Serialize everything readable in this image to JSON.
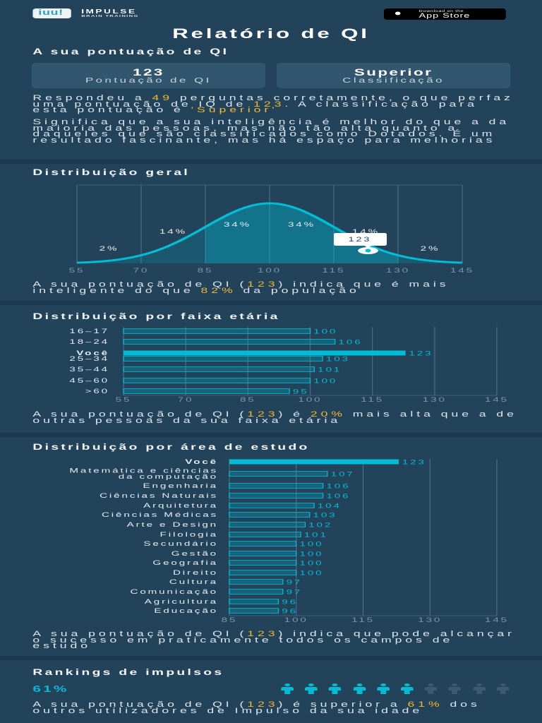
{
  "header": {
    "brand_name": "IMPULSE",
    "brand_tagline": "BRAIN TRAINING",
    "logo_text": "iuu!",
    "app_store": {
      "small": "Download on the",
      "big": "App Store",
      "icon": "apple-icon"
    }
  },
  "title": "Relatório de QI",
  "score_section": {
    "heading": "A sua pontuação de QI",
    "cards": [
      {
        "value": "123",
        "label": "Pontuação de QI"
      },
      {
        "value": "Superior",
        "label": "Classificação"
      }
    ],
    "paragraphs": [
      [
        {
          "t": "Respondeu a "
        },
        {
          "t": "49",
          "hl": true
        },
        {
          "t": " perguntas corretamente, o que perfaz uma pontuação de IQ de "
        },
        {
          "t": "123",
          "hl": true
        },
        {
          "t": ". A classificação para esta pontuação é "
        },
        {
          "t": "'Superior'",
          "hl": true
        }
      ],
      [
        {
          "t": "Significa que a sua inteligência é melhor do que a da maioria das pessoas, mas não tão alta quanto a daqueles que são classificados como Dotados. É um resultado fascinante, mas há espaço para melhorias"
        }
      ]
    ]
  },
  "colors": {
    "accent": "#00bcd4",
    "highlight": "#f5b82e",
    "background": "#22435a",
    "card": "#33566f",
    "inactive": "#3d5a70"
  },
  "distribution": {
    "heading": "Distribuição geral",
    "text": [
      {
        "t": "A sua pontuação de QI ("
      },
      {
        "t": "123",
        "hl": true
      },
      {
        "t": ") indica que é mais inteligente do que "
      },
      {
        "t": "82%",
        "hl": true
      },
      {
        "t": " da população"
      }
    ]
  },
  "age": {
    "heading": "Distribuição por faixa etária",
    "text": [
      {
        "t": "A sua pontuação de QI ("
      },
      {
        "t": "123",
        "hl": true
      },
      {
        "t": ") é "
      },
      {
        "t": "20%",
        "hl": true
      },
      {
        "t": " mais alta que a de outras pessoas da sua faixa etária"
      }
    ]
  },
  "study": {
    "heading": "Distribuição por área de estudo",
    "text": [
      {
        "t": "A sua pontuação de QI ("
      },
      {
        "t": "123",
        "hl": true
      },
      {
        "t": ") indica que pode alcançar o sucesso em praticamente todos os campos de estudo"
      }
    ]
  },
  "rankings": {
    "heading": "Rankings de impulsos",
    "percent_label": "61%",
    "percent": 61,
    "icon": "person-icon",
    "icons_total": 10,
    "icons_filled": 6,
    "text": [
      {
        "t": "A sua pontuação de QI ("
      },
      {
        "t": "123",
        "hl": true
      },
      {
        "t": ") é superior a "
      },
      {
        "t": "61%",
        "hl": true
      },
      {
        "t": " dos outros utilizadores de Impulso da sua idade"
      }
    ]
  },
  "chart_data": [
    {
      "type": "area",
      "title": "Distribuição geral",
      "distribution": "normal",
      "mean": 100,
      "sd": 15,
      "xlim": [
        55,
        145
      ],
      "x_ticks": [
        "55",
        "70",
        "85",
        "100",
        "115",
        "130",
        "145"
      ],
      "band_labels": [
        "2%",
        "14%",
        "34%",
        "34%",
        "14%",
        "2%"
      ],
      "marker": {
        "x": 123,
        "label": "123"
      },
      "grid": true
    },
    {
      "type": "bar",
      "orientation": "horizontal",
      "title": "Distribuição por faixa etária",
      "categories": [
        "16–17",
        "18–24",
        "Você",
        "25–34",
        "35–44",
        "45–60",
        ">60"
      ],
      "values": [
        100,
        106,
        123,
        103,
        101,
        100,
        95
      ],
      "highlight": "Você",
      "xlim": [
        55,
        145
      ],
      "x_ticks": [
        "55",
        "70",
        "85",
        "100",
        "115",
        "130",
        "145"
      ],
      "grid": true
    },
    {
      "type": "bar",
      "orientation": "horizontal",
      "title": "Distribuição por área de estudo",
      "categories": [
        "Você",
        "Matemática e ciências\nda computação",
        "Engenharia",
        "Ciências Naturais",
        "Arquitetura",
        "Ciências Médicas",
        "Arte e Design",
        "Filologia",
        "Secundário",
        "Gestão",
        "Geografia",
        "Direito",
        "Cultura",
        "Comunicação",
        "Agricultura",
        "Educação"
      ],
      "values": [
        123,
        107,
        106,
        106,
        104,
        103,
        102,
        101,
        100,
        100,
        100,
        100,
        97,
        97,
        96,
        96
      ],
      "highlight": "Você",
      "xlim": [
        85,
        145
      ],
      "x_ticks": [
        "85",
        "100",
        "115",
        "130",
        "145"
      ],
      "grid": true
    }
  ]
}
